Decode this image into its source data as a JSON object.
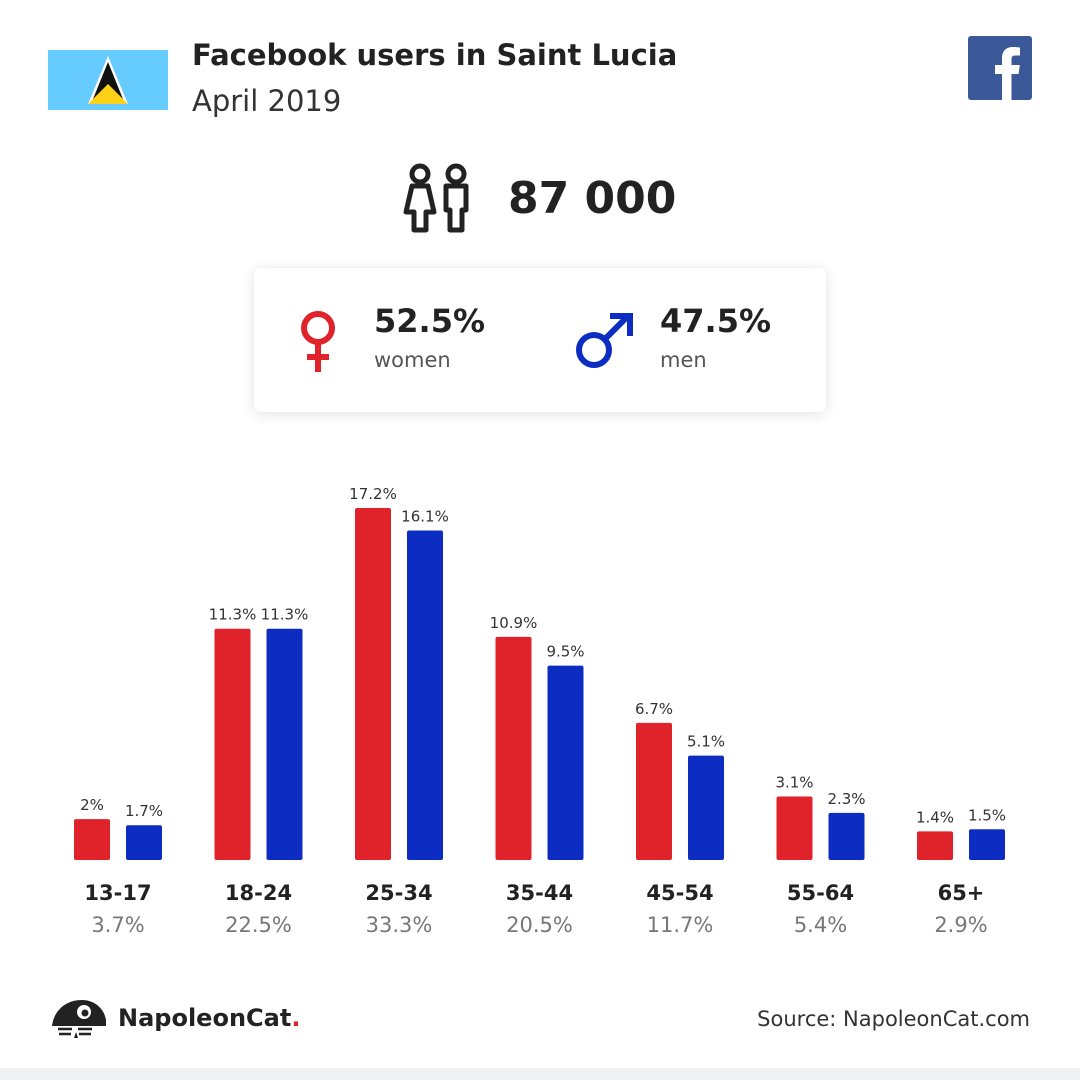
{
  "header": {
    "title": "Facebook users in Saint Lucia",
    "subtitle": "April 2019"
  },
  "icons": {
    "flag": "saint-lucia-flag-icon",
    "platform": "facebook-icon",
    "users": "users-icon",
    "female": "female-icon",
    "male": "male-icon",
    "brand": "napoleoncat-logo-icon"
  },
  "totals": {
    "users": "87 000"
  },
  "gender": {
    "women_pct": "52.5%",
    "women_label": "women",
    "men_pct": "47.5%",
    "men_label": "men"
  },
  "colors": {
    "women": "#e0222a",
    "men": "#0d2dc2",
    "facebook": "#3b5998",
    "flag_blue": "#66ccff"
  },
  "chart_data": {
    "type": "bar",
    "categories": [
      "13-17",
      "18-24",
      "25-34",
      "35-44",
      "45-54",
      "55-64",
      "65+"
    ],
    "group_totals": [
      "3.7%",
      "22.5%",
      "33.3%",
      "20.5%",
      "11.7%",
      "5.4%",
      "2.9%"
    ],
    "series": [
      {
        "values": [
          2,
          11.3,
          17.2,
          10.9,
          6.7,
          3.1,
          1.4
        ],
        "labels": [
          "2%",
          "11.3%",
          "17.2%",
          "10.9%",
          "6.7%",
          "3.1%",
          "1.4%"
        ],
        "color": "#e0222a"
      },
      {
        "values": [
          1.7,
          11.3,
          16.1,
          9.5,
          5.1,
          2.3,
          1.5
        ],
        "labels": [
          "1.7%",
          "11.3%",
          "16.1%",
          "9.5%",
          "5.1%",
          "2.3%",
          "1.5%"
        ],
        "color": "#0d2dc2"
      }
    ],
    "ylim": [
      0,
      17.2
    ]
  },
  "footer": {
    "brand_name": "NapoleonCat",
    "brand_dot": ".",
    "source": "Source: NapoleonCat.com"
  }
}
